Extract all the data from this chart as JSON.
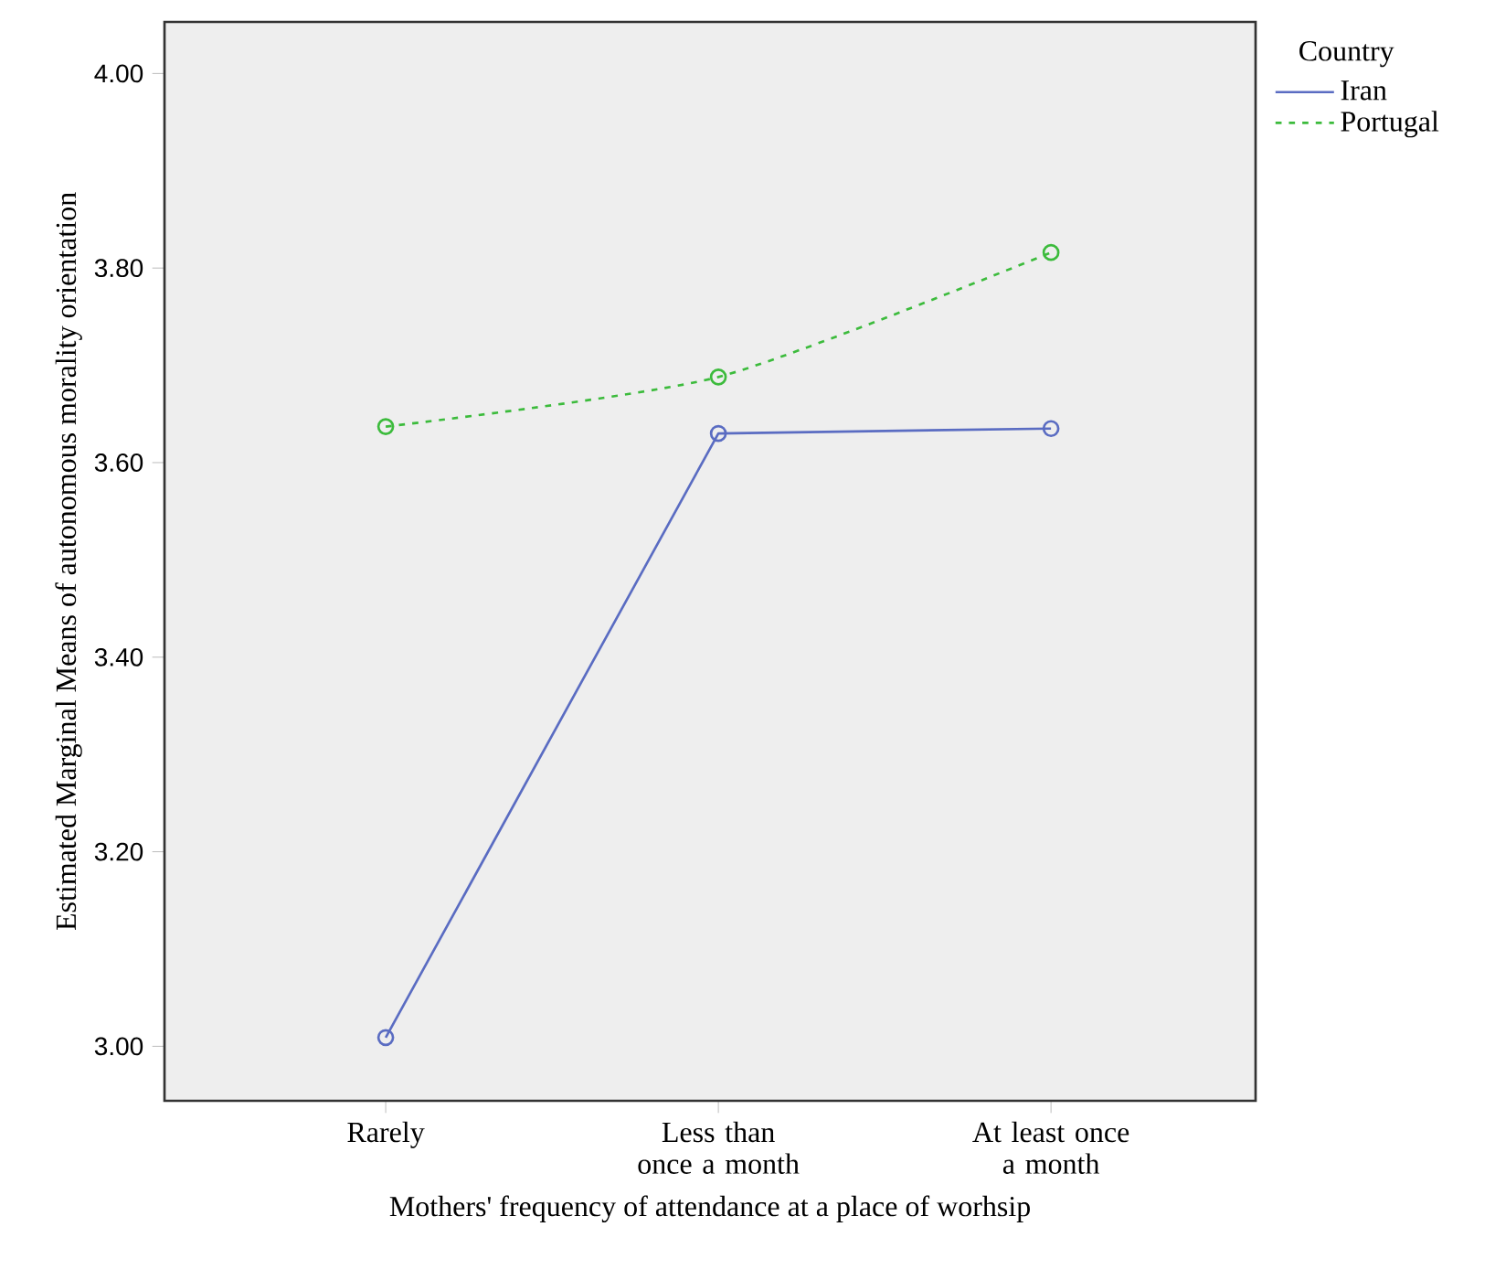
{
  "chart_data": {
    "type": "line",
    "xlabel": "Mothers' frequency of attendance at a place of worhsip",
    "ylabel": "Estimated Marginal Means of autonomous morality orientation",
    "legend_title": "Country",
    "categories": [
      "Rarely",
      "Less than once a month",
      "At least once a month"
    ],
    "series": [
      {
        "name": "Iran",
        "color": "#5a6cc2",
        "line_style": "solid",
        "values": [
          3.009,
          3.63,
          3.635
        ]
      },
      {
        "name": "Portugal",
        "color": "#3cbb3c",
        "line_style": "dotted",
        "values": [
          3.637,
          3.688,
          3.816
        ]
      }
    ],
    "ylim": [
      2.944,
      4.053
    ],
    "yticks": [
      {
        "value": 3.0,
        "label": "3.00"
      },
      {
        "value": 3.2,
        "label": "3.20"
      },
      {
        "value": 3.4,
        "label": "3.40"
      },
      {
        "value": 3.6,
        "label": "3.60"
      },
      {
        "value": 3.8,
        "label": "3.80"
      },
      {
        "value": 4.0,
        "label": "4.00"
      }
    ],
    "marker": "circle",
    "grid": false,
    "legend": "top right"
  }
}
